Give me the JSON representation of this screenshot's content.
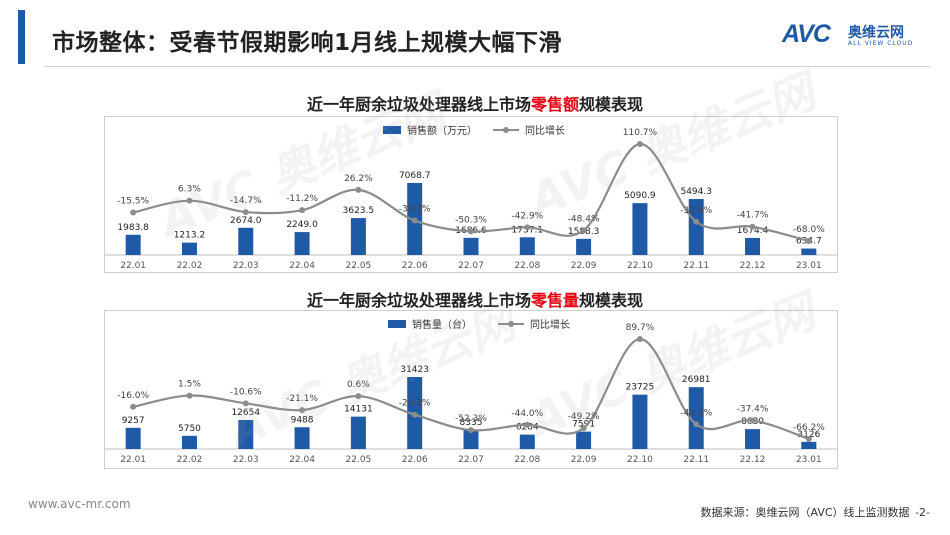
{
  "header": {
    "title": "市场整体：受春节假期影响1月线上规模大幅下滑",
    "logo_mark": "AVC",
    "logo_cn": "奥维云网",
    "logo_en": "ALL VIEW CLOUD"
  },
  "footer": {
    "site": "www.avc-mr.com",
    "source": "数据来源：奥维云网（AVC）线上监测数据",
    "page": "-2-"
  },
  "colors": {
    "bar": "#1f5aa6",
    "line": "#8c8c8c",
    "accent": "#1f5aa6",
    "highlight": "#e60012"
  },
  "chart_data": [
    {
      "type": "bar",
      "title_prefix": "近一年厨余垃圾处理器线上市场",
      "title_highlight": "零售额",
      "title_suffix": "规模表现",
      "categories": [
        "22.01",
        "22.02",
        "22.03",
        "22.04",
        "22.05",
        "22.06",
        "22.07",
        "22.08",
        "22.09",
        "22.10",
        "22.11",
        "22.12",
        "23.01"
      ],
      "series": [
        {
          "name": "销售额（万元）",
          "type": "bar",
          "values": [
            1983.8,
            1213.2,
            2674.0,
            2249.0,
            3623.5,
            7068.7,
            1686.6,
            1737.1,
            1588.3,
            5090.9,
            5494.3,
            1674.4,
            634.7
          ],
          "labels": [
            "1983.8",
            "1213.2",
            "2674.0",
            "2249.0",
            "3623.5",
            "7068.7",
            "1686.6",
            "1737.1",
            "1588.3",
            "5090.9",
            "5494.3",
            "1674.4",
            "634.7"
          ]
        },
        {
          "name": "同比增长",
          "type": "line",
          "values": [
            -15.5,
            6.3,
            -14.7,
            -11.2,
            26.2,
            -30.3,
            -50.3,
            -42.9,
            -48.4,
            110.7,
            -32.6,
            -41.7,
            -68.0
          ],
          "labels": [
            "-15.5%",
            "6.3%",
            "-14.7%",
            "-11.2%",
            "26.2%",
            "-30.3%",
            "-50.3%",
            "-42.9%",
            "-48.4%",
            "110.7%",
            "-32.6%",
            "-41.7%",
            "-68.0%"
          ]
        }
      ],
      "legend_position": "top",
      "grid": false
    },
    {
      "type": "bar",
      "title_prefix": "近一年厨余垃圾处理器线上市场",
      "title_highlight": "零售量",
      "title_suffix": "规模表现",
      "categories": [
        "22.01",
        "22.02",
        "22.03",
        "22.04",
        "22.05",
        "22.06",
        "22.07",
        "22.08",
        "22.09",
        "22.10",
        "22.11",
        "22.12",
        "23.01"
      ],
      "series": [
        {
          "name": "销售量（台）",
          "type": "bar",
          "values": [
            9257,
            5750,
            12654,
            9488,
            14131,
            31423,
            8335,
            6284,
            7591,
            23725,
            26981,
            8680,
            3126
          ],
          "labels": [
            "9257",
            "5750",
            "12654",
            "9488",
            "14131",
            "31423",
            "8335",
            "6284",
            "7591",
            "23725",
            "26981",
            "8680",
            "3126"
          ]
        },
        {
          "name": "同比增长",
          "type": "line",
          "values": [
            -16.0,
            1.5,
            -10.6,
            -21.1,
            0.6,
            -28.3,
            -52.3,
            -44.0,
            -49.2,
            89.7,
            -43.3,
            -37.4,
            -66.2
          ],
          "labels": [
            "-16.0%",
            "1.5%",
            "-10.6%",
            "-21.1%",
            "0.6%",
            "-28.3%",
            "-52.3%",
            "-44.0%",
            "-49.2%",
            "89.7%",
            "-43.3%",
            "-37.4%",
            "-66.2%"
          ]
        }
      ],
      "legend_position": "top",
      "grid": false
    }
  ]
}
